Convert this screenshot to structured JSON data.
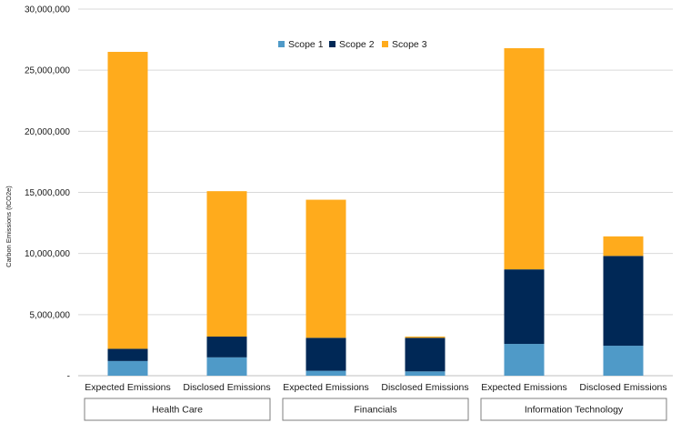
{
  "chart_data": {
    "type": "bar",
    "stacked": true,
    "ylabel": "Carbon Emissions (tCO2e)",
    "ylim": [
      0,
      30000000
    ],
    "yticks": [
      "-",
      "5,000,000",
      "10,000,000",
      "15,000,000",
      "20,000,000",
      "25,000,000",
      "30,000,000"
    ],
    "ytick_values": [
      0,
      5000000,
      10000000,
      15000000,
      20000000,
      25000000,
      30000000
    ],
    "grid": true,
    "legend_position": "top-center",
    "categories": [
      "Expected Emissions",
      "Disclosed Emissions",
      "Expected Emissions",
      "Disclosed Emissions",
      "Expected Emissions",
      "Disclosed Emissions"
    ],
    "groups": [
      {
        "label": "Health Care",
        "span": [
          0,
          1
        ]
      },
      {
        "label": "Financials",
        "span": [
          2,
          3
        ]
      },
      {
        "label": "Information Technology",
        "span": [
          4,
          5
        ]
      }
    ],
    "series": [
      {
        "name": "Scope 1",
        "color": "#4f9ac8",
        "values": [
          1200000,
          1500000,
          400000,
          350000,
          2600000,
          2450000
        ]
      },
      {
        "name": "Scope 2",
        "color": "#002856",
        "values": [
          1000000,
          1700000,
          2700000,
          2750000,
          6100000,
          7350000
        ]
      },
      {
        "name": "Scope 3",
        "color": "#ffab1c",
        "values": [
          24300000,
          11900000,
          11300000,
          100000,
          18100000,
          1600000
        ]
      }
    ]
  }
}
